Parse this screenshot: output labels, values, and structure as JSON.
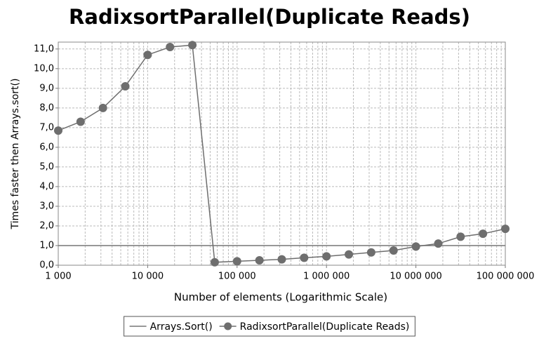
{
  "chart_data": {
    "type": "line",
    "title": "RadixsortParallel(Duplicate Reads)",
    "x_label": "Number of elements (Logarithmic Scale)",
    "y_label": "Times faster then Arrays.sort()",
    "x_log": true,
    "grid": true,
    "legend": "bottom",
    "xlim": [
      1000,
      100000000
    ],
    "xticks": [
      {
        "value": 1000,
        "label": "1 000"
      },
      {
        "value": 10000,
        "label": "10 000"
      },
      {
        "value": 100000,
        "label": "100 000"
      },
      {
        "value": 1000000,
        "label": "1 000 000"
      },
      {
        "value": 10000000,
        "label": "10 000 000"
      },
      {
        "value": 100000000,
        "label": "100 000 000"
      }
    ],
    "ylim": [
      0,
      11.35
    ],
    "yticks": [
      {
        "value": 0,
        "label": "0,0"
      },
      {
        "value": 1,
        "label": "1,0"
      },
      {
        "value": 2,
        "label": "2,0"
      },
      {
        "value": 3,
        "label": "3,0"
      },
      {
        "value": 4,
        "label": "4,0"
      },
      {
        "value": 5,
        "label": "5,0"
      },
      {
        "value": 6,
        "label": "6,0"
      },
      {
        "value": 7,
        "label": "7,0"
      },
      {
        "value": 8,
        "label": "8,0"
      },
      {
        "value": 9,
        "label": "9,0"
      },
      {
        "value": 10,
        "label": "10,0"
      },
      {
        "value": 11,
        "label": "11,0"
      }
    ],
    "series": [
      {
        "name": "Arrays.Sort()",
        "color": "#777777",
        "markers": false,
        "x": [
          1000,
          100000000
        ],
        "values": [
          1.0,
          1.0
        ]
      },
      {
        "name": "RadixsortParallel(Duplicate Reads)",
        "color": "#6e6e6e",
        "markers": true,
        "x": [
          1000,
          1778,
          3162,
          5623,
          10000,
          17783,
          31623,
          56234,
          100000,
          177828,
          316228,
          562341,
          1000000,
          1778279,
          3162278,
          5623413,
          10000000,
          17782794,
          31622777,
          56234133,
          100000000
        ],
        "values": [
          6.85,
          7.3,
          8.0,
          9.1,
          10.7,
          11.1,
          11.2,
          0.15,
          0.2,
          0.25,
          0.3,
          0.38,
          0.45,
          0.55,
          0.65,
          0.75,
          0.95,
          1.1,
          1.45,
          1.6,
          1.85
        ]
      }
    ]
  }
}
